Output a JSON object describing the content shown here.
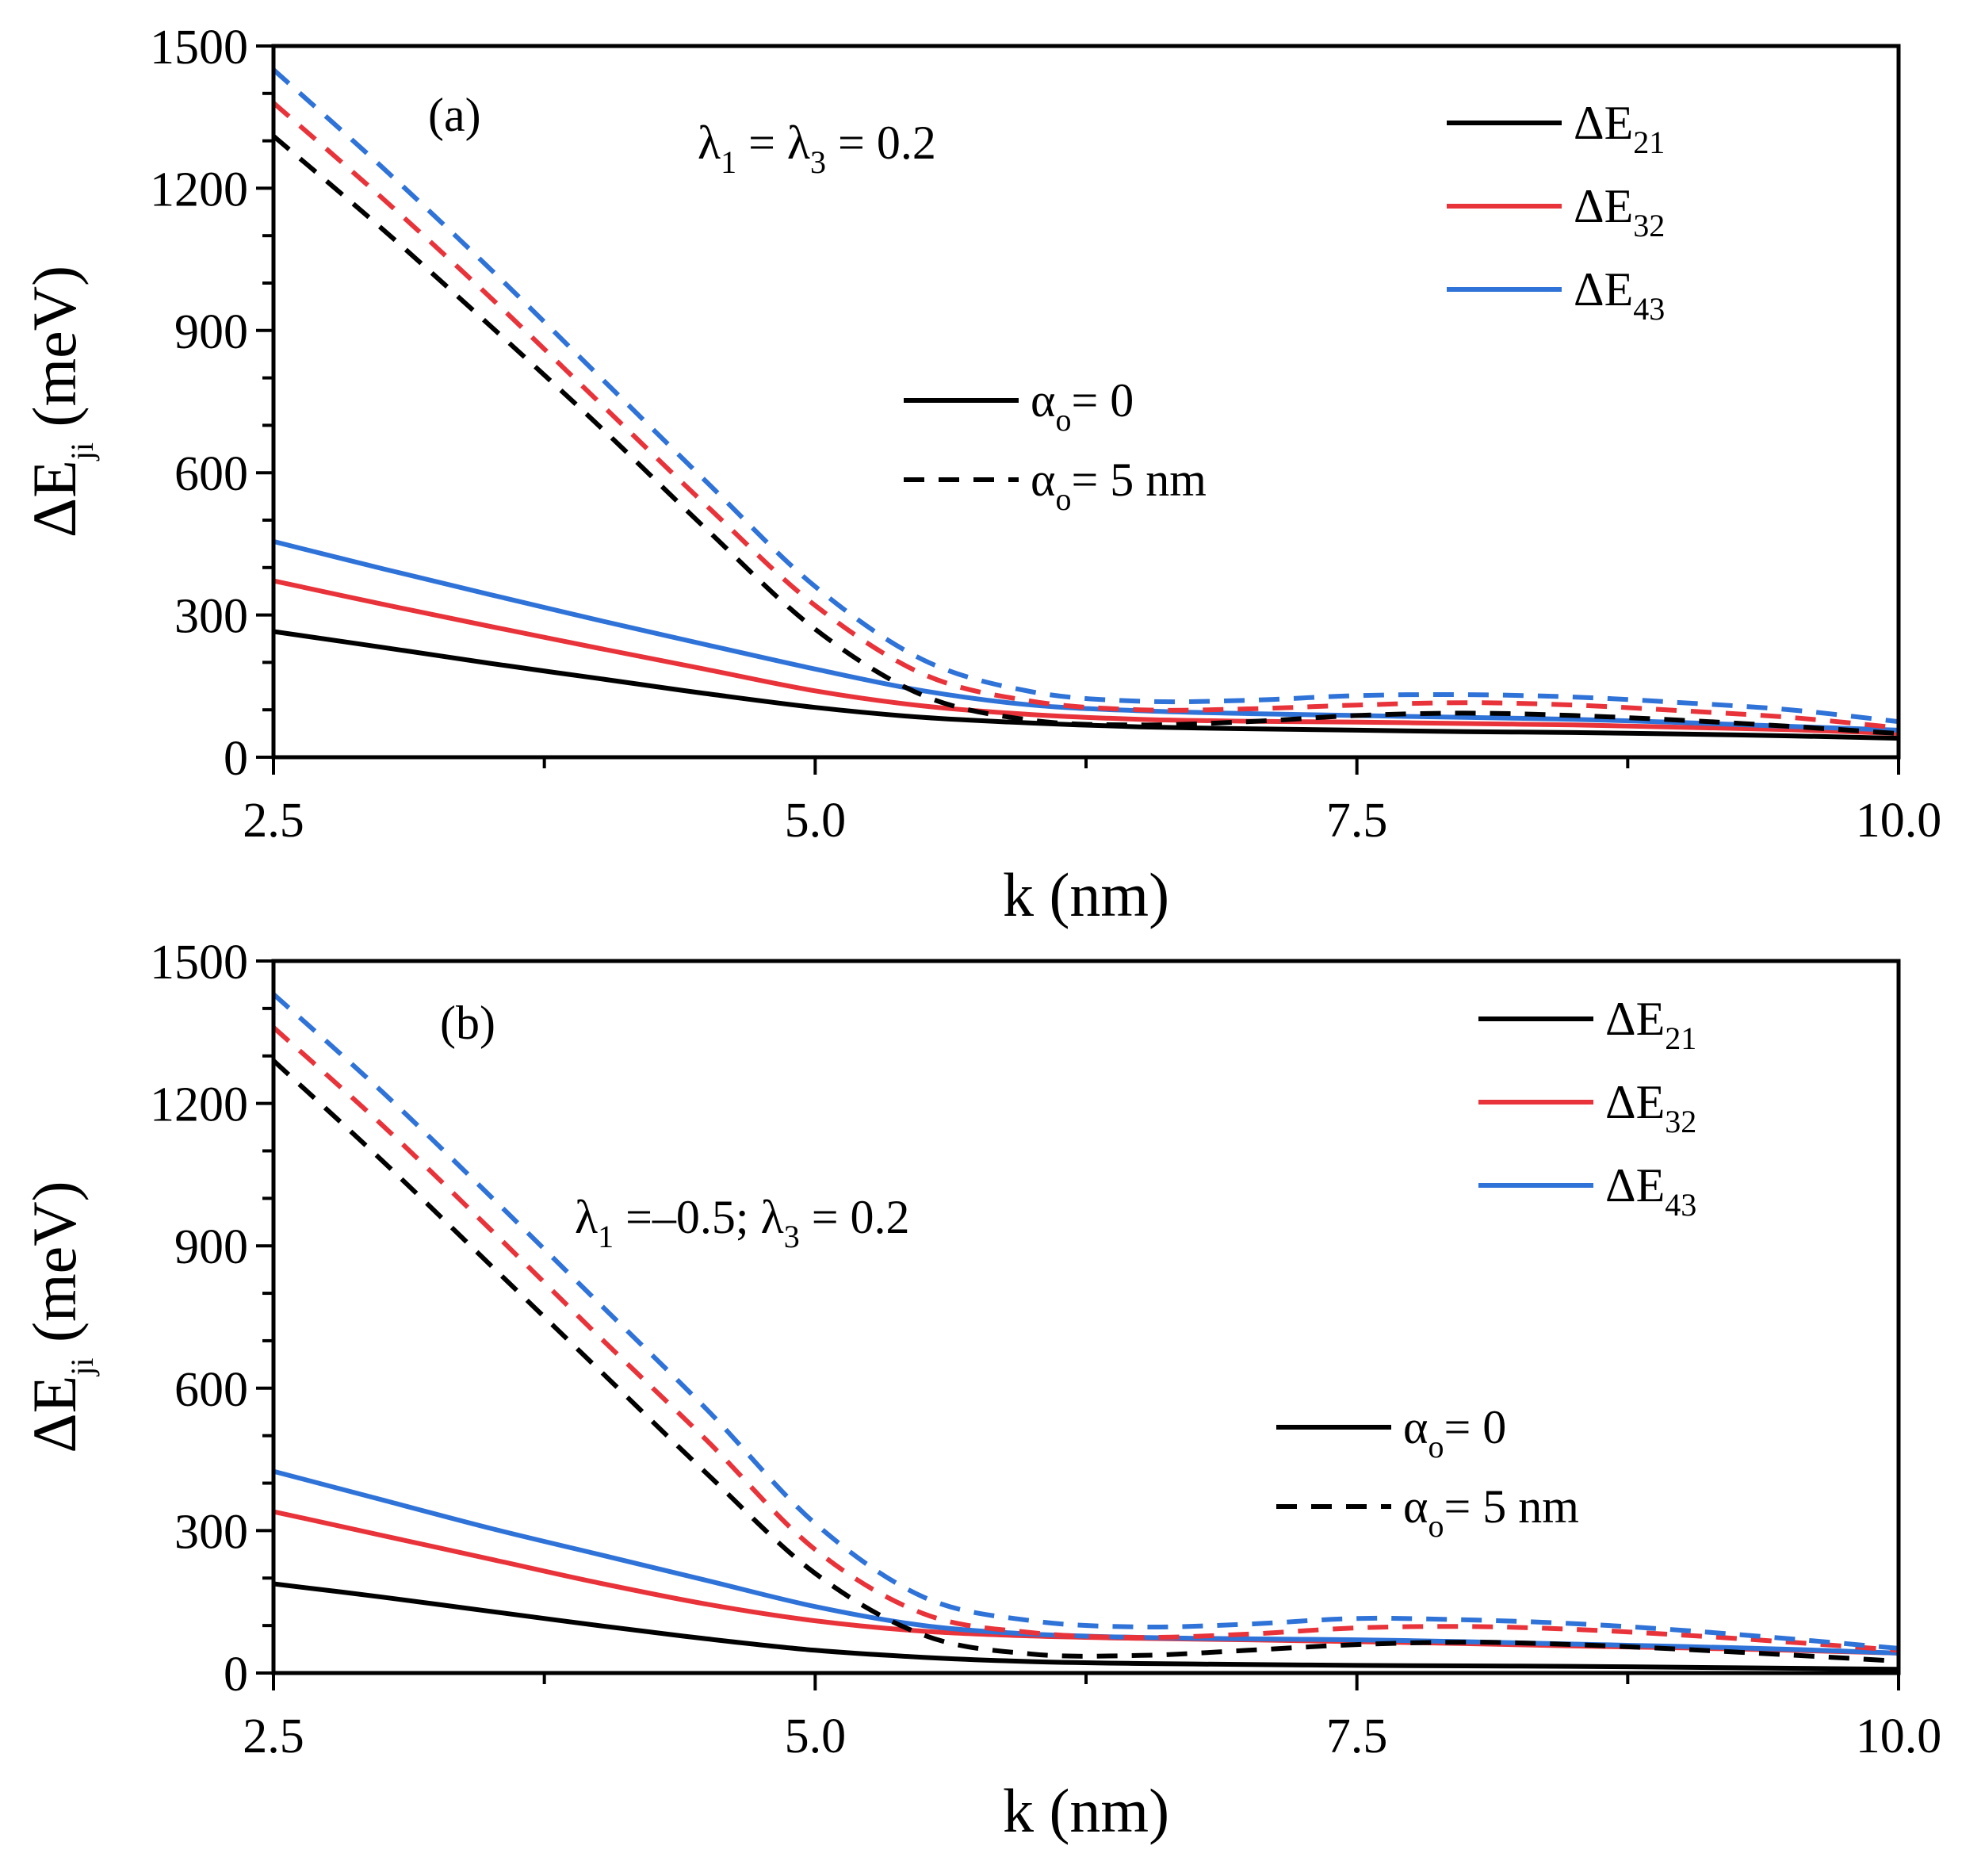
{
  "chart_data": [
    {
      "type": "line",
      "panel_label": "(a)",
      "annotation": {
        "lambda1": "λ",
        "sub1": "1",
        "mid": " = λ",
        "sub3": "3",
        "tail": " = 0.2"
      },
      "xlabel": "k (nm)",
      "ylabel": {
        "main": "ΔE",
        "sub": "ji",
        "unit": " (meV)"
      },
      "xlim": [
        2.5,
        10.0
      ],
      "ylim": [
        0,
        1500
      ],
      "xticks": [
        2.5,
        5.0,
        7.5,
        10.0
      ],
      "xtick_labels": [
        "2.5",
        "5.0",
        "7.5",
        "10.0"
      ],
      "yticks": [
        0,
        300,
        600,
        900,
        1200,
        1500
      ],
      "ytick_labels": [
        "0",
        "300",
        "600",
        "900",
        "1200",
        "1500"
      ],
      "legend_series": [
        {
          "main": "ΔE",
          "sub": "21",
          "color": "#000000"
        },
        {
          "main": "ΔE",
          "sub": "32",
          "color": "#e8333a"
        },
        {
          "main": "ΔE",
          "sub": "43",
          "color": "#2f73d8"
        }
      ],
      "legend_styles": [
        {
          "main": "α",
          "sub": "o",
          "tail": "= 0",
          "dash": false
        },
        {
          "main": "α",
          "sub": "o",
          "tail": "= 5 nm",
          "dash": true
        }
      ],
      "x": [
        2.5,
        3.0,
        3.5,
        4.0,
        4.5,
        5.0,
        5.5,
        6.0,
        6.5,
        7.0,
        7.5,
        8.0,
        8.5,
        9.0,
        9.5,
        10.0
      ],
      "series": [
        {
          "name": "ΔE21 α0=0",
          "color": "#000000",
          "dash": false,
          "values": [
            265,
            232,
            198,
            166,
            134,
            105,
            84,
            72,
            64,
            60,
            57,
            54,
            52,
            49,
            45,
            40
          ]
        },
        {
          "name": "ΔE32 α0=0",
          "color": "#e8333a",
          "dash": false,
          "values": [
            372,
            323,
            276,
            230,
            185,
            140,
            108,
            90,
            80,
            76,
            74,
            71,
            68,
            63,
            58,
            50
          ]
        },
        {
          "name": "ΔE43 α0=0",
          "color": "#2f73d8",
          "dash": false,
          "values": [
            455,
            398,
            343,
            289,
            237,
            186,
            140,
            110,
            98,
            92,
            88,
            84,
            80,
            73,
            65,
            57
          ]
        },
        {
          "name": "ΔE21 α0=5nm",
          "color": "#000000",
          "dash": true,
          "values": [
            1310,
            1115,
            910,
            700,
            480,
            270,
            130,
            78,
            68,
            75,
            88,
            93,
            88,
            78,
            65,
            50
          ]
        },
        {
          "name": "ΔE32 α0=5nm",
          "color": "#e8333a",
          "dash": true,
          "values": [
            1380,
            1180,
            970,
            750,
            530,
            320,
            175,
            118,
            100,
            102,
            110,
            115,
            110,
            98,
            84,
            62
          ]
        },
        {
          "name": "ΔE43 α0=5nm",
          "color": "#2f73d8",
          "dash": true,
          "values": [
            1450,
            1245,
            1030,
            805,
            580,
            360,
            205,
            138,
            118,
            120,
            130,
            132,
            127,
            115,
            100,
            75
          ]
        }
      ]
    },
    {
      "type": "line",
      "panel_label": "(b)",
      "annotation": {
        "lambda1": "λ",
        "sub1": "1",
        "mid": " =–0.5; λ",
        "sub3": "3",
        "tail": " = 0.2"
      },
      "xlabel": "k (nm)",
      "ylabel": {
        "main": "ΔE",
        "sub": "ji",
        "unit": " (meV)"
      },
      "xlim": [
        2.5,
        10.0
      ],
      "ylim": [
        0,
        1500
      ],
      "xticks": [
        2.5,
        5.0,
        7.5,
        10.0
      ],
      "xtick_labels": [
        "2.5",
        "5.0",
        "7.5",
        "10.0"
      ],
      "yticks": [
        0,
        300,
        600,
        900,
        1200,
        1500
      ],
      "ytick_labels": [
        "0",
        "300",
        "600",
        "900",
        "1200",
        "1500"
      ],
      "legend_series": [
        {
          "main": "ΔE",
          "sub": "21",
          "color": "#000000"
        },
        {
          "main": "ΔE",
          "sub": "32",
          "color": "#e8333a"
        },
        {
          "main": "ΔE",
          "sub": "43",
          "color": "#2f73d8"
        }
      ],
      "legend_styles": [
        {
          "main": "α",
          "sub": "o",
          "tail": "= 0",
          "dash": false
        },
        {
          "main": "α",
          "sub": "o",
          "tail": "= 5 nm",
          "dash": true
        }
      ],
      "x": [
        2.5,
        3.0,
        3.5,
        4.0,
        4.5,
        5.0,
        5.5,
        6.0,
        6.5,
        7.0,
        7.5,
        8.0,
        8.5,
        9.0,
        9.5,
        10.0
      ],
      "series": [
        {
          "name": "ΔE21 α0=0",
          "color": "#000000",
          "dash": false,
          "values": [
            188,
            160,
            130,
            100,
            72,
            48,
            33,
            24,
            20,
            18,
            16,
            15,
            14,
            12,
            10,
            8
          ]
        },
        {
          "name": "ΔE32 α0=0",
          "color": "#e8333a",
          "dash": false,
          "values": [
            340,
            290,
            240,
            190,
            145,
            110,
            88,
            78,
            73,
            70,
            66,
            62,
            57,
            53,
            48,
            42
          ]
        },
        {
          "name": "ΔE43 α0=0",
          "color": "#2f73d8",
          "dash": false,
          "values": [
            425,
            365,
            305,
            250,
            195,
            140,
            100,
            82,
            75,
            72,
            70,
            66,
            61,
            56,
            50,
            42
          ]
        },
        {
          "name": "ΔE21 α0=5nm",
          "color": "#000000",
          "dash": true,
          "values": [
            1290,
            1080,
            860,
            640,
            420,
            210,
            80,
            40,
            37,
            48,
            60,
            65,
            60,
            50,
            38,
            25
          ]
        },
        {
          "name": "ΔE32 α0=5nm",
          "color": "#e8333a",
          "dash": true,
          "values": [
            1360,
            1155,
            935,
            710,
            490,
            260,
            125,
            85,
            75,
            82,
            95,
            98,
            92,
            80,
            65,
            48
          ]
        },
        {
          "name": "ΔE43 α0=5nm",
          "color": "#2f73d8",
          "dash": true,
          "values": [
            1430,
            1225,
            1005,
            780,
            555,
            315,
            160,
            110,
            97,
            103,
            115,
            112,
            104,
            90,
            72,
            52
          ]
        }
      ]
    }
  ]
}
